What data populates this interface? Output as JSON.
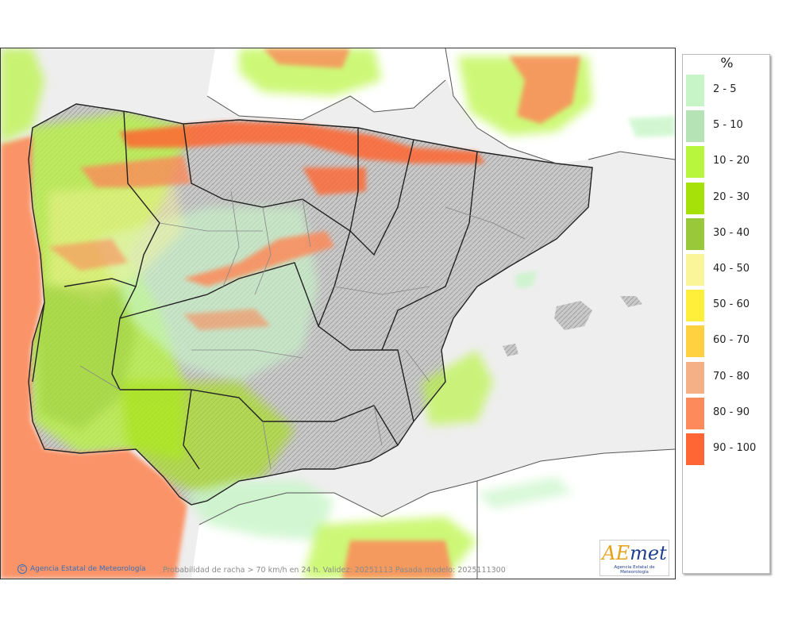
{
  "map": {
    "caption": "Probabilidad de racha > 70 km/h en 24 h. Validez: 20251113 Pasada modelo: 2025111300",
    "copyright": "Agencia Estatal de Meteorología",
    "copyright_symbol": "C",
    "logo": {
      "brand_a": "AE",
      "brand_b": "met",
      "subtitle": "Agencia Estatal de Meteorología"
    },
    "colors": {
      "sea": "#eeeeee",
      "land_relief": "#bdbdbd",
      "border_major": "#222222",
      "border_minor": "#888888"
    }
  },
  "legend": {
    "title": "%",
    "items": [
      {
        "label": "2 - 5",
        "color": "#c8f5c8"
      },
      {
        "label": "5 - 10",
        "color": "#b6e3b6"
      },
      {
        "label": "10 - 20",
        "color": "#b8f53d"
      },
      {
        "label": "20 - 30",
        "color": "#a6e10a"
      },
      {
        "label": "30 - 40",
        "color": "#99c93b"
      },
      {
        "label": "40 - 50",
        "color": "#fbf59a"
      },
      {
        "label": "50 - 60",
        "color": "#ffef3a"
      },
      {
        "label": "60 - 70",
        "color": "#ffd140"
      },
      {
        "label": "70 - 80",
        "color": "#f6b085"
      },
      {
        "label": "80 - 90",
        "color": "#fc8a5a"
      },
      {
        "label": "90 - 100",
        "color": "#ff6633"
      }
    ]
  }
}
